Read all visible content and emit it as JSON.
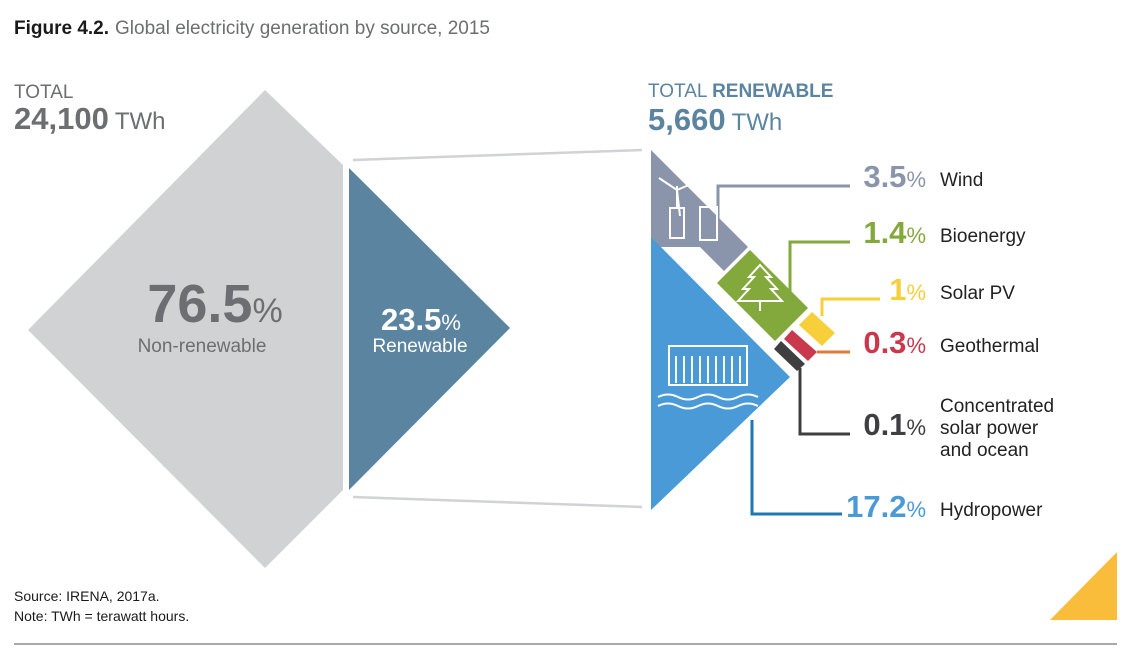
{
  "figure": {
    "label": "Figure 4.2.",
    "title": "Global electricity generation by source, 2015"
  },
  "total": {
    "label": "TOTAL",
    "value": "24,100",
    "unit": "TWh"
  },
  "total_renewable": {
    "label_prefix": "TOTAL ",
    "label_emph": "RENEWABLE",
    "value": "5,660",
    "unit": "TWh"
  },
  "footer": {
    "source": "Source: IRENA, 2017a.",
    "note": "Note: TWh = terawatt hours."
  },
  "colors": {
    "nonrenewable": "#d1d2d3",
    "renewable": "#5b84a0",
    "accent_triangle": "#f9bc3b"
  },
  "chart_data": [
    {
      "type": "pie",
      "units": "%",
      "slices": [
        {
          "name": "Non-renewable",
          "value": 76.5,
          "value_label": "76.5",
          "unit": "%",
          "color": "#d1d2d3",
          "text_color": "#6d6e71"
        },
        {
          "name": "Renewable",
          "value": 23.5,
          "value_label": "23.5",
          "unit": "%",
          "color": "#5b84a0",
          "text_color": "#ffffff"
        }
      ]
    },
    {
      "type": "bar",
      "units": "%",
      "categories": [
        "Wind",
        "Bioenergy",
        "Solar PV",
        "Geothermal",
        "Concentrated solar power and ocean",
        "Hydropower"
      ],
      "series": [
        {
          "values": [
            3.5,
            1.4,
            1,
            0.3,
            0.1,
            17.2
          ],
          "value_labels": [
            "3.5",
            "1.4",
            "1",
            "0.3",
            "0.1",
            "17.2"
          ],
          "label_lines": [
            [
              "Wind"
            ],
            [
              "Bioenergy"
            ],
            [
              "Solar PV"
            ],
            [
              "Geothermal"
            ],
            [
              "Concentrated",
              "solar power",
              "and ocean"
            ],
            [
              "Hydropower"
            ]
          ],
          "colors": [
            "#8a95ab",
            "#83a93c",
            "#f6cf3a",
            "#c9384d",
            "#3f3f41",
            "#4a9ad7"
          ],
          "icons": [
            "wind-turbine-icon",
            "tree-icon",
            "",
            "",
            "",
            "hydro-dam-icon"
          ]
        }
      ]
    }
  ]
}
